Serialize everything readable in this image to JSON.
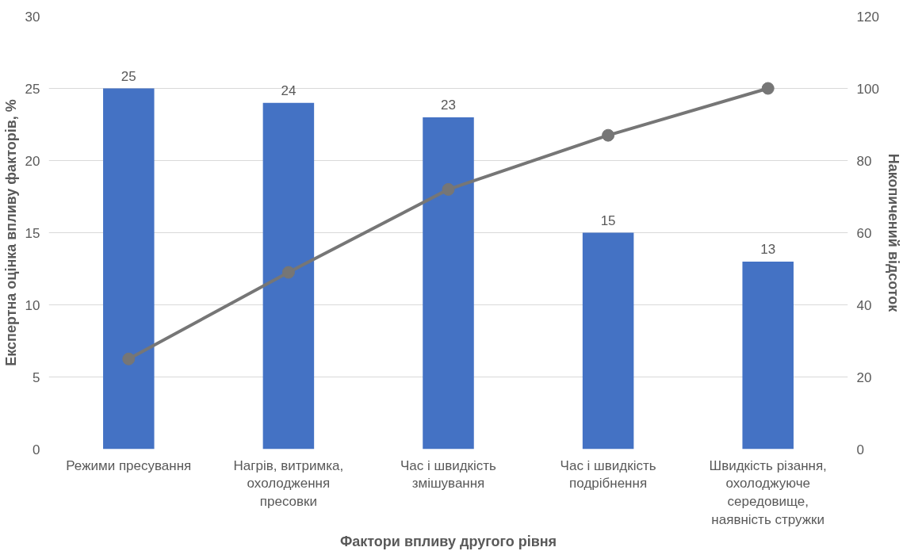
{
  "chart_data": {
    "type": "bar",
    "xlabel": "Фактори впливу другого рівня",
    "ylabel": "Експертна оцінка впливу факторів, %",
    "y2label": "Накопичений відсоток",
    "categories": [
      "Режими пресування",
      "Нагрів, витримка, охолодження пресовки",
      "Час і швидкість змішування",
      "Час і швидкість подрібнення",
      "Швидкість різання, охолоджуюче середовище, наявність стружки"
    ],
    "series": [
      {
        "color": "#4472c4",
        "values": [
          25,
          24,
          23,
          15,
          13
        ],
        "value_labels": [
          "25",
          "24",
          "23",
          "15",
          "13"
        ]
      },
      {
        "type": "line",
        "axis": "y2",
        "color": "#767676",
        "values": [
          25,
          49,
          72,
          87,
          100
        ],
        "marker": "circle",
        "line_style": "solid"
      }
    ],
    "ylim": [
      0,
      30
    ],
    "yticks": [
      0,
      5,
      10,
      15,
      20,
      25,
      30
    ],
    "y2lim": [
      0,
      120
    ],
    "y2ticks": [
      0,
      20,
      40,
      60,
      80,
      100,
      120
    ],
    "grid": "y"
  }
}
